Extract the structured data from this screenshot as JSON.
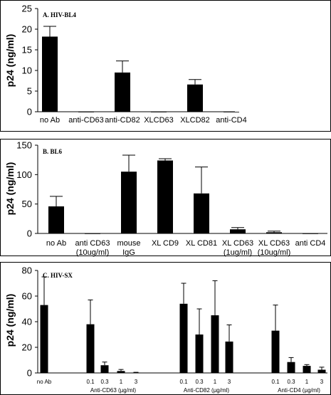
{
  "chart_data": [
    {
      "type": "bar",
      "title": "A. HIV-BL4",
      "ylabel": "p24 (ng/ml)",
      "ylim": [
        0,
        25
      ],
      "yticks": [
        "0",
        "5",
        "10",
        "15",
        "20",
        "25"
      ],
      "categories": [
        "no Ab",
        "anti-CD63",
        "anti-CD82",
        "XLCD63",
        "XLCD82",
        "anti-CD4"
      ],
      "values": [
        18.2,
        0,
        9.5,
        0,
        6.6,
        0
      ],
      "errors": [
        2.5,
        0,
        2.8,
        0,
        1.2,
        0
      ]
    },
    {
      "type": "bar",
      "title": "B. BL6",
      "ylabel": "p24 (ng/ml)",
      "ylim": [
        0,
        150
      ],
      "yticks": [
        "0",
        "50",
        "100",
        "150"
      ],
      "categories": [
        [
          "no Ab"
        ],
        [
          "anti CD63",
          "(10ug/ml)"
        ],
        [
          "mouse",
          "IgG"
        ],
        [
          "XL CD9"
        ],
        [
          "XL CD81"
        ],
        [
          "XL CD63",
          "(1ug/ml)"
        ],
        [
          "XL CD63",
          "(10ug/ml)"
        ],
        [
          "anti CD4"
        ]
      ],
      "values": [
        46,
        0,
        105,
        124,
        68,
        7,
        2,
        0
      ],
      "errors": [
        17,
        0,
        28,
        3,
        45,
        3,
        2,
        0
      ]
    },
    {
      "type": "bar",
      "title": "C. HIV-SX",
      "ylabel": "p24 (ng/ml)",
      "ylim": [
        0,
        80
      ],
      "yticks": [
        "0",
        "20",
        "40",
        "60",
        "80"
      ],
      "categories": [
        "no Ab",
        "0.1",
        "0.3",
        "1",
        "3",
        "0.1",
        "0.3",
        "1",
        "3",
        "0.1",
        "0.3",
        "1",
        "3"
      ],
      "groups": [
        {
          "label": "",
          "members": [
            0
          ]
        },
        {
          "label": "Anti-CD63 (µg/ml)",
          "members": [
            1,
            2,
            3,
            4
          ]
        },
        {
          "label": "Anti-CD82 (µg/ml)",
          "members": [
            5,
            6,
            7,
            8
          ]
        },
        {
          "label": "Anti-CD4 (µg/ml)",
          "members": [
            9,
            10,
            11,
            12
          ]
        }
      ],
      "values": [
        53,
        38,
        6,
        1.5,
        0.3,
        54,
        30,
        45,
        24.5,
        33,
        8.5,
        5.5,
        2.5
      ],
      "errors": [
        22,
        19,
        2.5,
        1.2,
        0.2,
        16,
        20,
        27,
        13,
        20,
        3.5,
        1,
        2
      ]
    }
  ]
}
